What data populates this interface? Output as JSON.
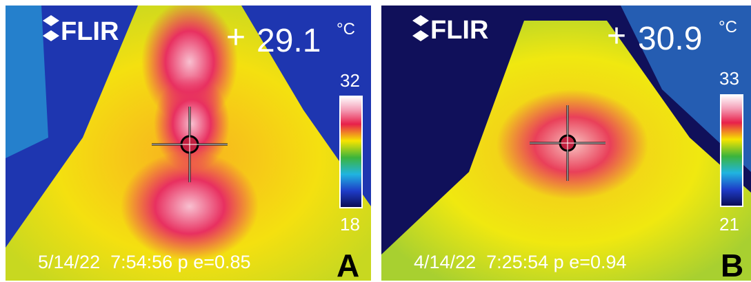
{
  "panels": [
    {
      "brand": "FLIR",
      "temperature": "29.1",
      "unit": "°C",
      "scale_max": "32",
      "scale_min": "18",
      "timestamp": "5/14/22  7:54:56 p e=0.85",
      "label": "A"
    },
    {
      "brand": "FLIR",
      "temperature": "30.9",
      "unit": "°C",
      "scale_max": "33",
      "scale_min": "21",
      "timestamp": "4/14/22  7:25:54 p e=0.94",
      "label": "B"
    }
  ]
}
